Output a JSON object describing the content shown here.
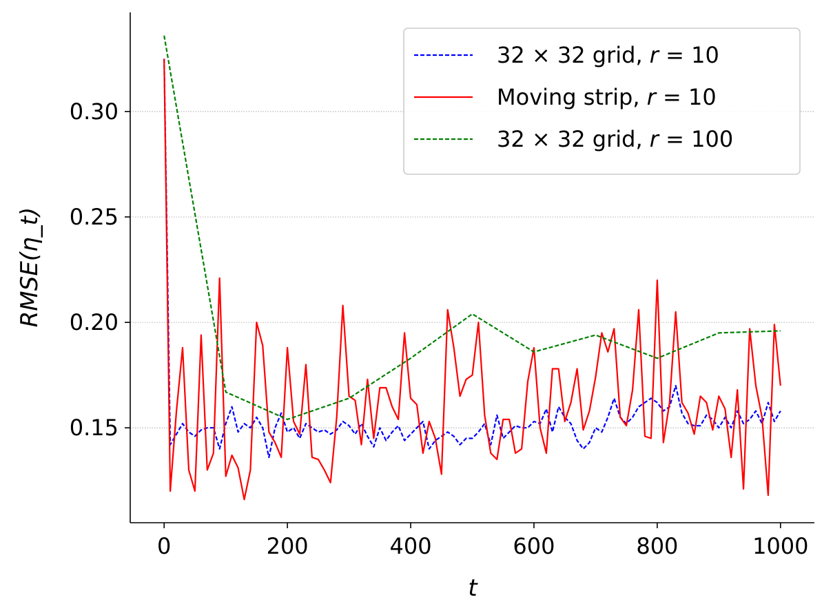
{
  "chart_data": {
    "type": "line",
    "title": "",
    "xlabel": "t",
    "ylabel": "RMSE(η_t)",
    "xlim": [
      -55,
      1055
    ],
    "ylim": [
      0.105,
      0.347
    ],
    "xticks": [
      0,
      200,
      400,
      600,
      800,
      1000
    ],
    "xtick_labels": [
      "0",
      "200",
      "400",
      "600",
      "800",
      "1000"
    ],
    "yticks": [
      0.15,
      0.2,
      0.25,
      0.3
    ],
    "ytick_labels": [
      "0.15",
      "0.20",
      "0.25",
      "0.30"
    ],
    "grid": "horizontal-dotted",
    "legend_position": "top-right",
    "series": [
      {
        "name": "32 × 32 grid, r = 10",
        "legend_parts": [
          "32 × 32 grid, ",
          "r",
          " = 10"
        ],
        "color": "#0000ff",
        "style": "dashed",
        "x": [
          0,
          10,
          20,
          30,
          40,
          50,
          60,
          70,
          80,
          90,
          100,
          110,
          120,
          130,
          140,
          150,
          160,
          170,
          180,
          190,
          200,
          210,
          220,
          230,
          240,
          250,
          260,
          270,
          280,
          290,
          300,
          310,
          320,
          330,
          340,
          350,
          360,
          370,
          380,
          390,
          400,
          410,
          420,
          430,
          440,
          450,
          460,
          470,
          480,
          490,
          500,
          510,
          520,
          530,
          540,
          550,
          560,
          570,
          580,
          590,
          600,
          610,
          620,
          630,
          640,
          650,
          660,
          670,
          680,
          690,
          700,
          710,
          720,
          730,
          740,
          750,
          760,
          770,
          780,
          790,
          800,
          810,
          820,
          830,
          840,
          850,
          860,
          870,
          880,
          890,
          900,
          910,
          920,
          930,
          940,
          950,
          960,
          970,
          980,
          990,
          1000
        ],
        "y": [
          0.325,
          0.142,
          0.147,
          0.152,
          0.148,
          0.146,
          0.149,
          0.15,
          0.15,
          0.14,
          0.152,
          0.16,
          0.148,
          0.152,
          0.15,
          0.155,
          0.15,
          0.136,
          0.15,
          0.157,
          0.148,
          0.15,
          0.145,
          0.152,
          0.15,
          0.148,
          0.149,
          0.147,
          0.149,
          0.153,
          0.151,
          0.147,
          0.152,
          0.146,
          0.141,
          0.15,
          0.144,
          0.148,
          0.151,
          0.144,
          0.147,
          0.15,
          0.153,
          0.14,
          0.144,
          0.146,
          0.148,
          0.146,
          0.142,
          0.145,
          0.145,
          0.148,
          0.152,
          0.142,
          0.156,
          0.145,
          0.148,
          0.151,
          0.15,
          0.15,
          0.153,
          0.152,
          0.159,
          0.148,
          0.16,
          0.155,
          0.152,
          0.144,
          0.14,
          0.143,
          0.15,
          0.148,
          0.155,
          0.164,
          0.155,
          0.152,
          0.155,
          0.16,
          0.162,
          0.164,
          0.162,
          0.158,
          0.16,
          0.17,
          0.157,
          0.152,
          0.151,
          0.151,
          0.156,
          0.154,
          0.15,
          0.155,
          0.15,
          0.158,
          0.152,
          0.154,
          0.158,
          0.152,
          0.162,
          0.153,
          0.158
        ]
      },
      {
        "name": "Moving strip, r = 10",
        "legend_parts": [
          "Moving strip, ",
          "r",
          " = 10"
        ],
        "color": "#ff0000",
        "style": "solid",
        "x": [
          0,
          10,
          20,
          30,
          40,
          50,
          60,
          70,
          80,
          90,
          100,
          110,
          120,
          130,
          140,
          150,
          160,
          170,
          180,
          190,
          200,
          210,
          220,
          230,
          240,
          250,
          260,
          270,
          280,
          290,
          300,
          310,
          320,
          330,
          340,
          350,
          360,
          370,
          380,
          390,
          400,
          410,
          420,
          430,
          440,
          450,
          460,
          470,
          480,
          490,
          500,
          510,
          520,
          530,
          540,
          550,
          560,
          570,
          580,
          590,
          600,
          610,
          620,
          630,
          640,
          650,
          660,
          670,
          680,
          690,
          700,
          710,
          720,
          730,
          740,
          750,
          760,
          770,
          780,
          790,
          800,
          810,
          820,
          830,
          840,
          850,
          860,
          870,
          880,
          890,
          900,
          910,
          920,
          930,
          940,
          950,
          960,
          970,
          980,
          990,
          1000
        ],
        "y": [
          0.325,
          0.12,
          0.158,
          0.188,
          0.13,
          0.12,
          0.194,
          0.13,
          0.138,
          0.221,
          0.127,
          0.137,
          0.131,
          0.116,
          0.13,
          0.2,
          0.189,
          0.148,
          0.143,
          0.136,
          0.188,
          0.153,
          0.147,
          0.18,
          0.136,
          0.135,
          0.13,
          0.124,
          0.155,
          0.208,
          0.165,
          0.163,
          0.142,
          0.173,
          0.145,
          0.169,
          0.169,
          0.16,
          0.154,
          0.195,
          0.164,
          0.161,
          0.138,
          0.153,
          0.145,
          0.128,
          0.206,
          0.188,
          0.165,
          0.173,
          0.175,
          0.2,
          0.156,
          0.138,
          0.135,
          0.154,
          0.154,
          0.138,
          0.14,
          0.172,
          0.188,
          0.15,
          0.138,
          0.178,
          0.178,
          0.153,
          0.162,
          0.178,
          0.149,
          0.158,
          0.174,
          0.195,
          0.186,
          0.197,
          0.155,
          0.151,
          0.168,
          0.206,
          0.146,
          0.145,
          0.22,
          0.143,
          0.162,
          0.205,
          0.162,
          0.157,
          0.147,
          0.165,
          0.162,
          0.149,
          0.165,
          0.159,
          0.136,
          0.168,
          0.121,
          0.197,
          0.17,
          0.155,
          0.118,
          0.199,
          0.17
        ]
      },
      {
        "name": "32 × 32 grid, r = 100",
        "legend_parts": [
          "32 × 32 grid, ",
          "r",
          " = 100"
        ],
        "color": "#008000",
        "style": "dashed",
        "x": [
          0,
          100,
          200,
          300,
          400,
          500,
          600,
          700,
          800,
          900,
          1000
        ],
        "y": [
          0.336,
          0.167,
          0.154,
          0.164,
          0.183,
          0.204,
          0.186,
          0.194,
          0.183,
          0.195,
          0.196
        ]
      }
    ]
  }
}
